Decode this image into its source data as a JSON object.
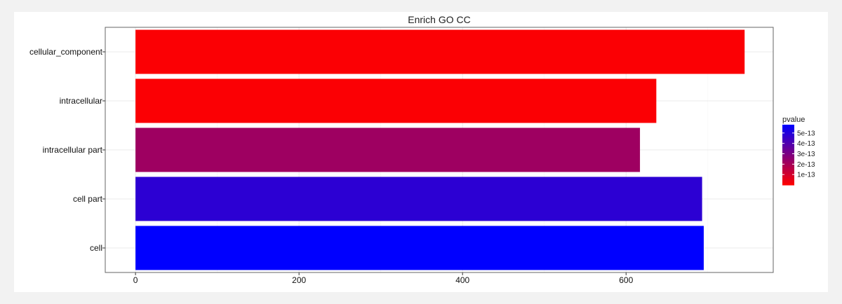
{
  "chart_data": {
    "type": "bar",
    "orientation": "horizontal",
    "title": "Enrich GO CC",
    "xlabel": "",
    "ylabel": "",
    "categories": [
      "cellular_component",
      "intracellular",
      "intracellular part",
      "cell part",
      "cell"
    ],
    "values": [
      745,
      637,
      617,
      693,
      695
    ],
    "pvalues": [
      1e-14,
      1e-14,
      2.2e-13,
      4.8e-13,
      5.8e-13
    ],
    "xlim": [
      -37,
      780
    ],
    "x_ticks": [
      0,
      200,
      400,
      600
    ],
    "x_tick_labels": [
      "0",
      "200",
      "400",
      "600"
    ],
    "grid": true,
    "legend": {
      "title": "pvalue",
      "placement": "right",
      "ticks": [
        5e-13,
        4e-13,
        3e-13,
        2e-13,
        1e-13
      ],
      "tick_labels": [
        "5e-13",
        "4e-13",
        "3e-13",
        "2e-13",
        "1e-13"
      ],
      "range": [
        0,
        5.8e-13
      ],
      "color_low": "#ff0000",
      "color_high": "#0000ff"
    }
  }
}
